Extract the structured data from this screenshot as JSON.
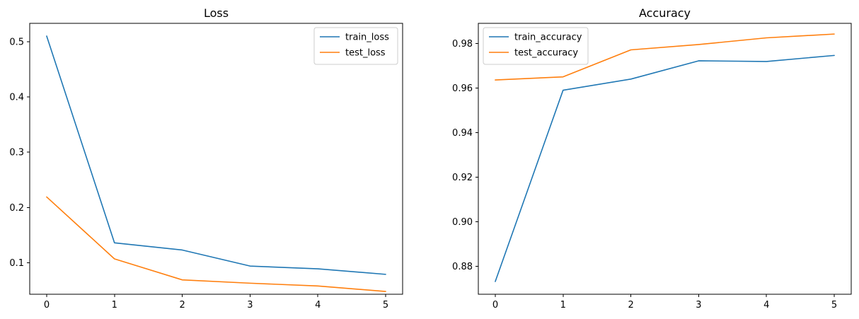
{
  "colors": {
    "series_1": "#1f77b4",
    "series_2": "#ff7f0e"
  },
  "chart_data": [
    {
      "type": "line",
      "title": "Loss",
      "xlabel": "",
      "ylabel": "",
      "x": [
        0,
        1,
        2,
        3,
        4,
        5
      ],
      "xticks": [
        0,
        1,
        2,
        3,
        4,
        5
      ],
      "xticklabels": [
        "0",
        "1",
        "2",
        "3",
        "4",
        "5"
      ],
      "xlim": [
        -0.25,
        5.25
      ],
      "ylim": [
        0.043,
        0.533
      ],
      "yticks": [
        0.1,
        0.2,
        0.3,
        0.4,
        0.5
      ],
      "yticklabels": [
        "0.1",
        "0.2",
        "0.3",
        "0.4",
        "0.5"
      ],
      "grid": false,
      "legend_position": "upper right",
      "series": [
        {
          "name": "train_loss",
          "color": "#1f77b4",
          "values": [
            0.51,
            0.136,
            0.123,
            0.094,
            0.089,
            0.079
          ]
        },
        {
          "name": "test_loss",
          "color": "#ff7f0e",
          "values": [
            0.219,
            0.107,
            0.069,
            0.063,
            0.058,
            0.048
          ]
        }
      ]
    },
    {
      "type": "line",
      "title": "Accuracy",
      "xlabel": "",
      "ylabel": "",
      "x": [
        0,
        1,
        2,
        3,
        4,
        5
      ],
      "xticks": [
        0,
        1,
        2,
        3,
        4,
        5
      ],
      "xticklabels": [
        "0",
        "1",
        "2",
        "3",
        "4",
        "5"
      ],
      "xlim": [
        -0.25,
        5.25
      ],
      "ylim": [
        0.8675,
        0.989
      ],
      "yticks": [
        0.88,
        0.9,
        0.92,
        0.94,
        0.96,
        0.98
      ],
      "yticklabels": [
        "0.88",
        "0.90",
        "0.92",
        "0.94",
        "0.96",
        "0.98"
      ],
      "grid": false,
      "legend_position": "upper left",
      "series": [
        {
          "name": "train_accuracy",
          "color": "#1f77b4",
          "values": [
            0.8732,
            0.959,
            0.964,
            0.9722,
            0.9719,
            0.9746
          ]
        },
        {
          "name": "test_accuracy",
          "color": "#ff7f0e",
          "values": [
            0.9636,
            0.965,
            0.9771,
            0.9795,
            0.9825,
            0.9842
          ]
        }
      ]
    }
  ]
}
